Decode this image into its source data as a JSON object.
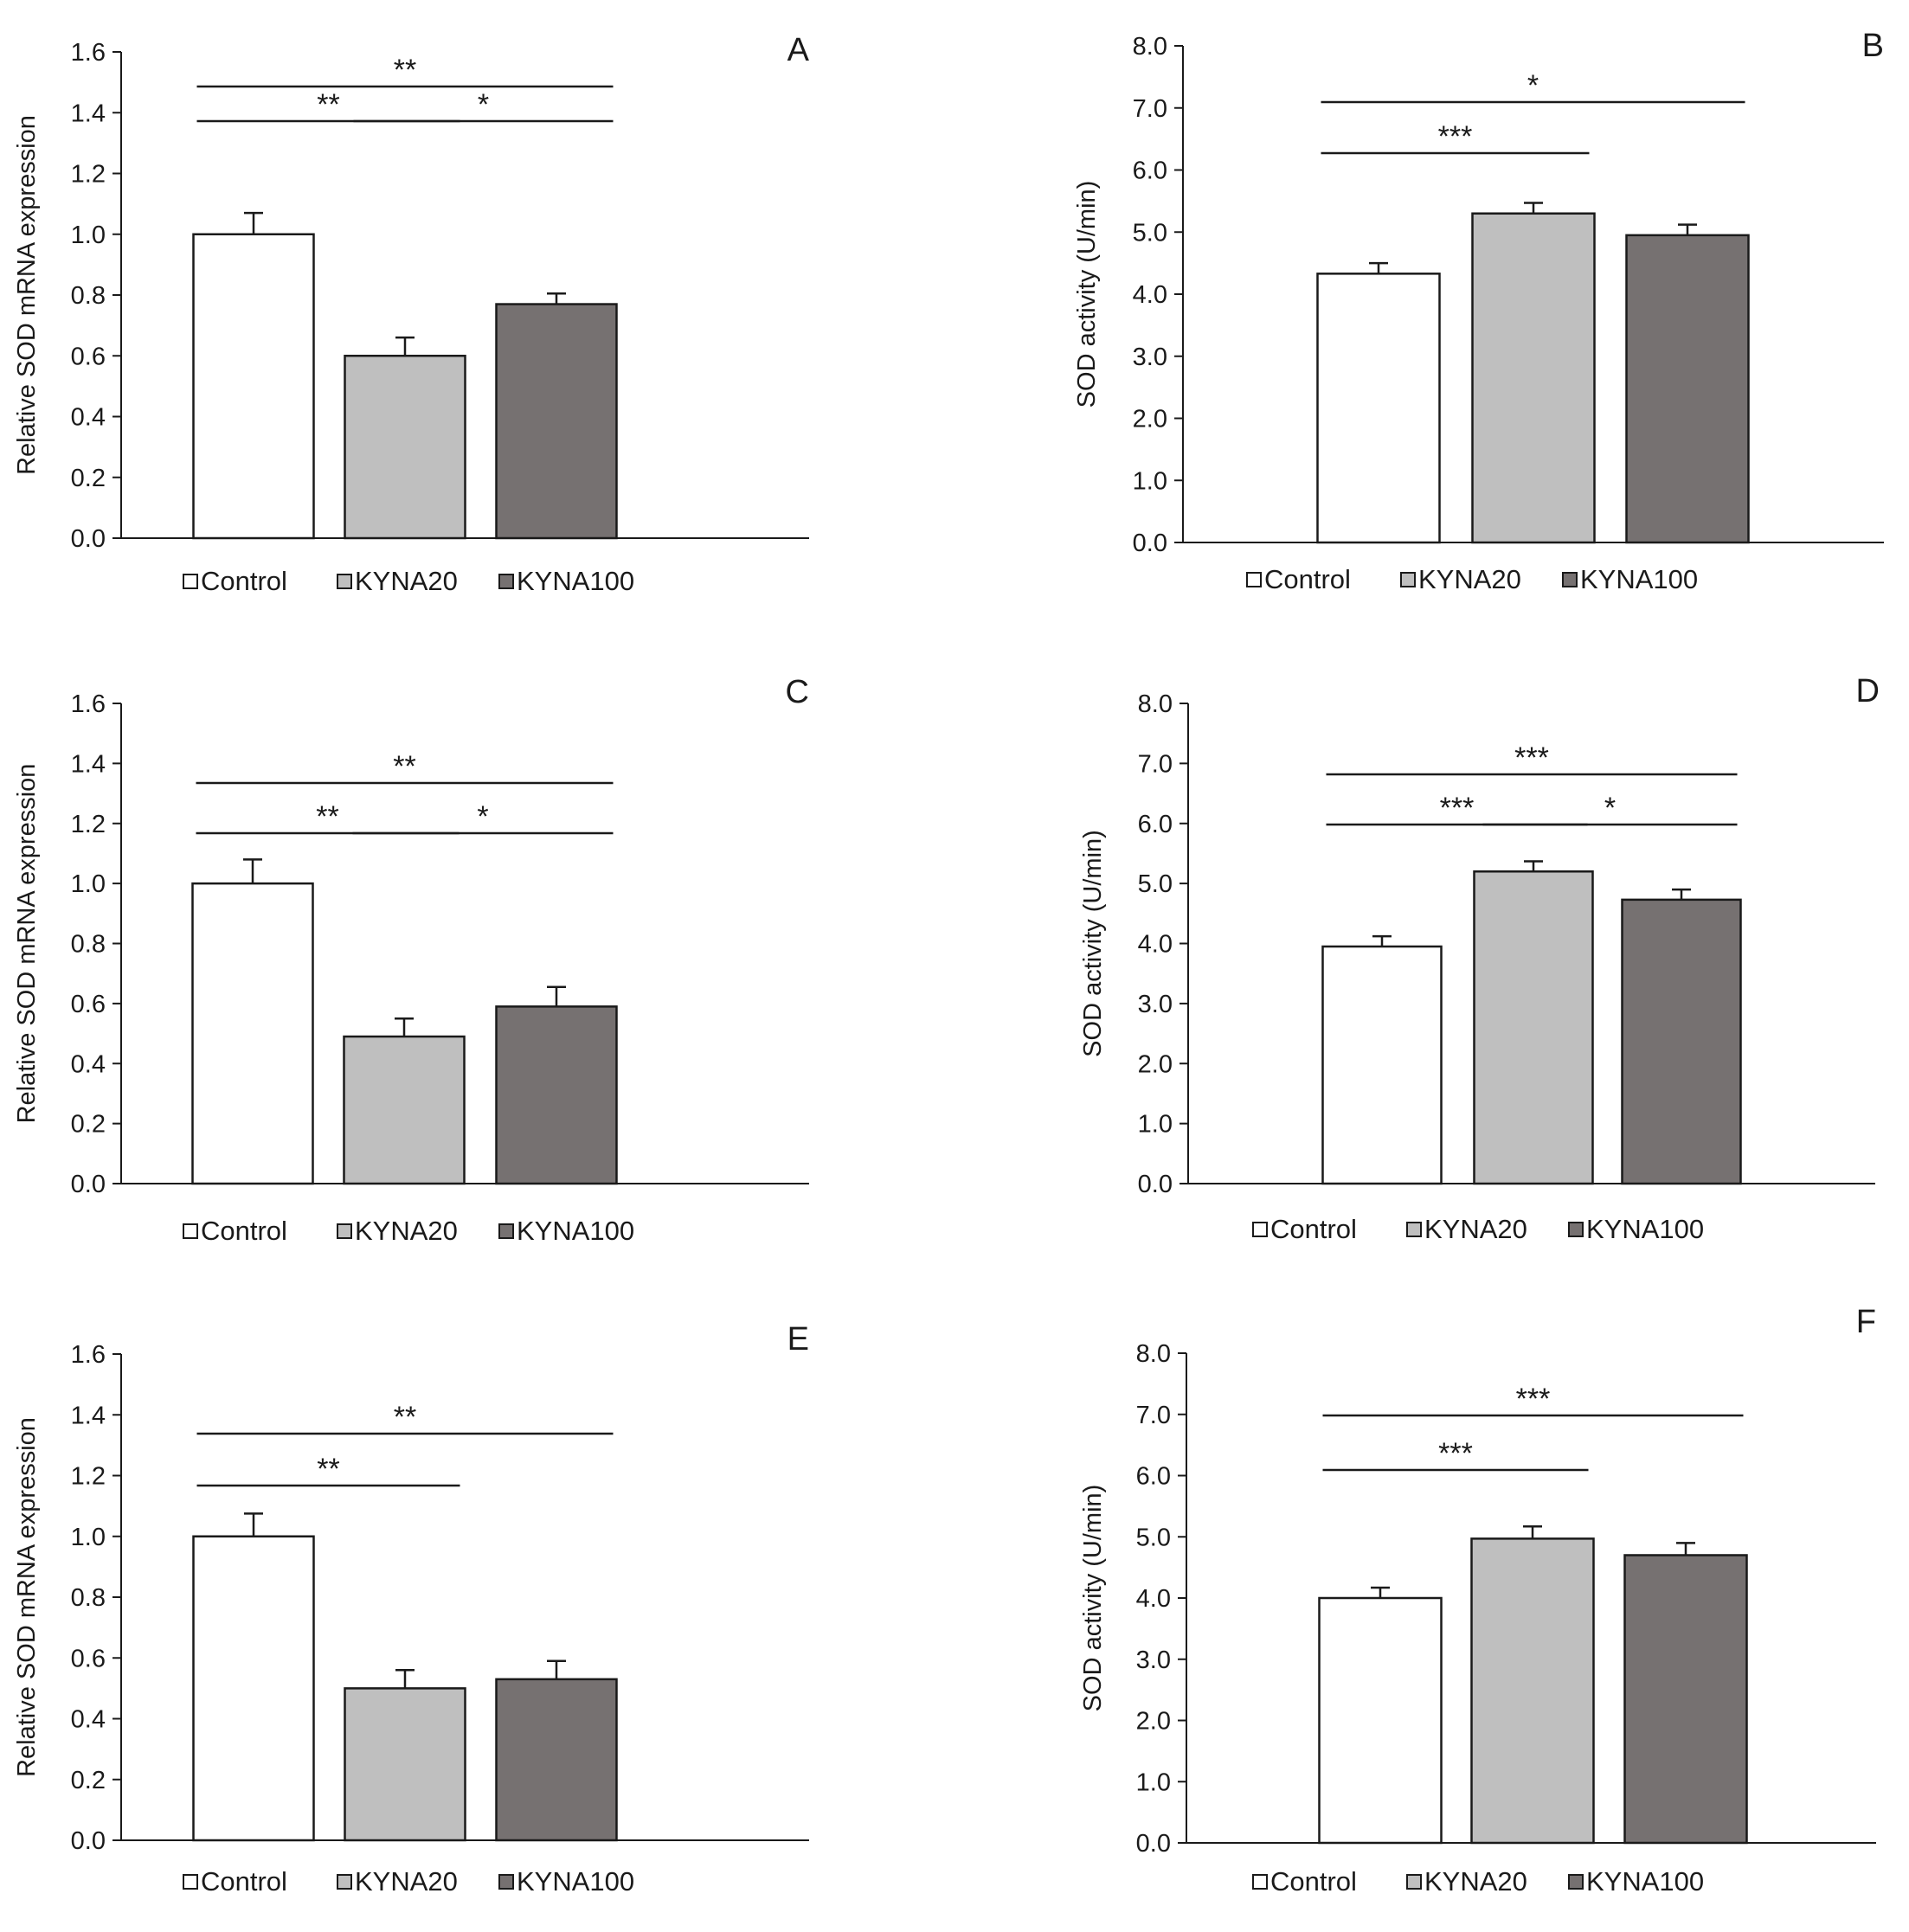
{
  "colors": {
    "control": "#ffffff",
    "kyna20": "#bfbfbf",
    "kyna100": "#767171",
    "line": "#1a1a1a"
  },
  "chart_data": [
    {
      "type": "bar",
      "panel": "A",
      "ylabel": "Relative  SOD mRNA expression",
      "ylim": [
        0,
        1.6
      ],
      "yticks": [
        "0.0",
        "0.2",
        "0.4",
        "0.6",
        "0.8",
        "1.0",
        "1.2",
        "1.4",
        "1.6"
      ],
      "categories": [
        "Control",
        "KYNA20",
        "KYNA100"
      ],
      "values": [
        1.0,
        0.6,
        0.77
      ],
      "errors": [
        0.07,
        0.06,
        0.035
      ],
      "legend": [
        "Control",
        "KYNA20",
        "KYNA100"
      ],
      "legend_position": "bottom",
      "significance": [
        {
          "from": 0,
          "to": 2,
          "label": "**"
        },
        {
          "from": 0,
          "to": 1,
          "label": "**"
        },
        {
          "from": 1,
          "to": 2,
          "label": "*"
        }
      ]
    },
    {
      "type": "bar",
      "panel": "B",
      "ylabel": "SOD activity  (U/min)",
      "ylim": [
        0,
        8.0
      ],
      "yticks": [
        "0.0",
        "1.0",
        "2.0",
        "3.0",
        "4.0",
        "5.0",
        "6.0",
        "7.0",
        "8.0"
      ],
      "categories": [
        "Control",
        "KYNA20",
        "KYNA100"
      ],
      "values": [
        4.33,
        5.3,
        4.95
      ],
      "errors": [
        0.17,
        0.17,
        0.17
      ],
      "legend": [
        "Control",
        "KYNA20",
        "KYNA100"
      ],
      "legend_position": "bottom",
      "significance": [
        {
          "from": 0,
          "to": 2,
          "label": "*"
        },
        {
          "from": 0,
          "to": 1,
          "label": "***"
        }
      ]
    },
    {
      "type": "bar",
      "panel": "C",
      "ylabel": "Relative  SOD mRNA expression",
      "ylim": [
        0,
        1.6
      ],
      "yticks": [
        "0.0",
        "0.2",
        "0.4",
        "0.6",
        "0.8",
        "1.0",
        "1.2",
        "1.4",
        "1.6"
      ],
      "categories": [
        "Control",
        "KYNA20",
        "KYNA100"
      ],
      "values": [
        1.0,
        0.49,
        0.59
      ],
      "errors": [
        0.08,
        0.06,
        0.065
      ],
      "legend": [
        "Control",
        "KYNA20",
        "KYNA100"
      ],
      "legend_position": "bottom",
      "significance": [
        {
          "from": 0,
          "to": 2,
          "label": "**"
        },
        {
          "from": 0,
          "to": 1,
          "label": "**"
        },
        {
          "from": 1,
          "to": 2,
          "label": "*"
        }
      ]
    },
    {
      "type": "bar",
      "panel": "D",
      "ylabel": "SOD activity  (U/min)",
      "ylim": [
        0,
        8.0
      ],
      "yticks": [
        "0.0",
        "1.0",
        "2.0",
        "3.0",
        "4.0",
        "5.0",
        "6.0",
        "7.0",
        "8.0"
      ],
      "categories": [
        "Control",
        "KYNA20",
        "KYNA100"
      ],
      "values": [
        3.95,
        5.2,
        4.73
      ],
      "errors": [
        0.17,
        0.17,
        0.17
      ],
      "legend": [
        "Control",
        "KYNA20",
        "KYNA100"
      ],
      "legend_position": "bottom",
      "significance": [
        {
          "from": 0,
          "to": 2,
          "label": "***"
        },
        {
          "from": 0,
          "to": 1,
          "label": "***"
        },
        {
          "from": 1,
          "to": 2,
          "label": "*"
        }
      ]
    },
    {
      "type": "bar",
      "panel": "E",
      "ylabel": "Relative  SOD mRNA expression",
      "ylim": [
        0,
        1.6
      ],
      "yticks": [
        "0.0",
        "0.2",
        "0.4",
        "0.6",
        "0.8",
        "1.0",
        "1.2",
        "1.4",
        "1.6"
      ],
      "categories": [
        "Control",
        "KYNA20",
        "KYNA100"
      ],
      "values": [
        1.0,
        0.5,
        0.53
      ],
      "errors": [
        0.075,
        0.06,
        0.06
      ],
      "legend": [
        "Control",
        "KYNA20",
        "KYNA100"
      ],
      "legend_position": "bottom",
      "significance": [
        {
          "from": 0,
          "to": 2,
          "label": "**"
        },
        {
          "from": 0,
          "to": 1,
          "label": "**"
        }
      ]
    },
    {
      "type": "bar",
      "panel": "F",
      "ylabel": "SOD activity  (U/min)",
      "ylim": [
        0,
        8.0
      ],
      "yticks": [
        "0.0",
        "1.0",
        "2.0",
        "3.0",
        "4.0",
        "5.0",
        "6.0",
        "7.0",
        "8.0"
      ],
      "categories": [
        "Control",
        "KYNA20",
        "KYNA100"
      ],
      "values": [
        4.0,
        4.97,
        4.7
      ],
      "errors": [
        0.17,
        0.2,
        0.2
      ],
      "legend": [
        "Control",
        "KYNA20",
        "KYNA100"
      ],
      "legend_position": "bottom",
      "significance": [
        {
          "from": 0,
          "to": 2,
          "label": "***"
        },
        {
          "from": 0,
          "to": 1,
          "label": "***"
        }
      ]
    }
  ]
}
